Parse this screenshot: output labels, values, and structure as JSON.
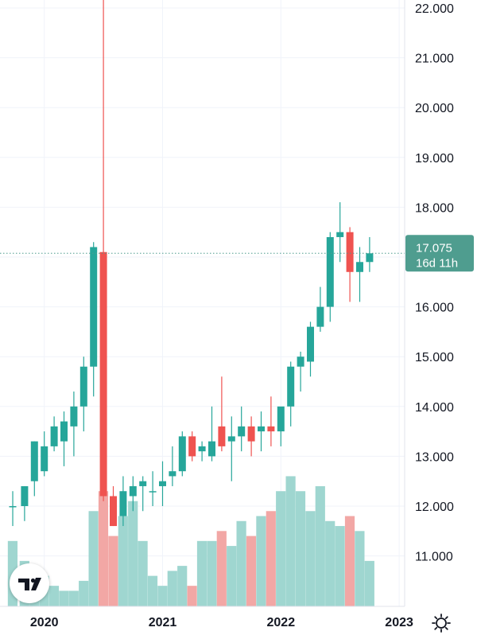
{
  "chart_data": {
    "type": "candlestick",
    "y_axis": {
      "min": 10.0,
      "max": 22.2,
      "position": "right",
      "ticks": [
        22,
        21,
        20,
        19,
        18,
        17,
        16,
        15,
        14,
        13,
        12,
        11
      ],
      "tick_labels": [
        "22.000",
        "21.000",
        "20.000",
        "19.000",
        "18.000",
        "17.000",
        "16.000",
        "15.000",
        "14.000",
        "13.000",
        "12.000",
        "11.000"
      ]
    },
    "x_axis": {
      "labels": [
        "2020",
        "2021",
        "2022",
        "2023"
      ],
      "label_positions": [
        3,
        15,
        27,
        39
      ]
    },
    "grid": true,
    "colors": {
      "up": "#26a69a",
      "down": "#ef5350",
      "up_volume": "#9fd6d0",
      "down_volume": "#f2a7a5",
      "grid": "#f0f3fa",
      "axis_text": "#131722"
    },
    "volume_scale_max": 13.5,
    "candles": [
      {
        "i": -0.2,
        "o": 12.0,
        "h": 12.3,
        "l": 11.6,
        "c": 12.0,
        "v": 11.3
      },
      {
        "i": 1,
        "o": 12.0,
        "h": 12.4,
        "l": 11.7,
        "c": 12.4,
        "v": 10.9
      },
      {
        "i": 2,
        "o": 12.5,
        "h": 13.3,
        "l": 12.2,
        "c": 13.3,
        "v": 10.7
      },
      {
        "i": 3,
        "o": 12.7,
        "h": 13.5,
        "l": 12.6,
        "c": 13.2,
        "v": 10.6
      },
      {
        "i": 4,
        "o": 13.2,
        "h": 13.8,
        "l": 13.1,
        "c": 13.6,
        "v": 10.4
      },
      {
        "i": 5,
        "o": 13.3,
        "h": 13.9,
        "l": 12.8,
        "c": 13.7,
        "v": 10.3
      },
      {
        "i": 6,
        "o": 13.6,
        "h": 14.3,
        "l": 13.0,
        "c": 14.0,
        "v": 10.3
      },
      {
        "i": 7,
        "o": 14.0,
        "h": 15.0,
        "l": 13.5,
        "c": 14.8,
        "v": 10.5
      },
      {
        "i": 8,
        "o": 14.8,
        "h": 17.3,
        "l": 14.2,
        "c": 17.2,
        "v": 11.9
      },
      {
        "i": 9,
        "o": 17.1,
        "h": 22.2,
        "l": 12.1,
        "c": 12.2,
        "v": 12.3
      },
      {
        "i": 10,
        "o": 12.2,
        "h": 12.4,
        "l": 11.6,
        "c": 11.6,
        "v": 11.4
      },
      {
        "i": 11,
        "o": 11.8,
        "h": 12.6,
        "l": 11.6,
        "c": 12.3,
        "v": 11.8
      },
      {
        "i": 12,
        "o": 12.2,
        "h": 12.6,
        "l": 11.9,
        "c": 12.4,
        "v": 12.1
      },
      {
        "i": 13,
        "o": 12.4,
        "h": 12.6,
        "l": 11.9,
        "c": 12.5,
        "v": 11.3
      },
      {
        "i": 14,
        "o": 12.3,
        "h": 12.7,
        "l": 12.0,
        "c": 12.3,
        "v": 10.6
      },
      {
        "i": 15,
        "o": 12.4,
        "h": 12.9,
        "l": 12.0,
        "c": 12.5,
        "v": 10.4
      },
      {
        "i": 16,
        "o": 12.6,
        "h": 13.2,
        "l": 12.4,
        "c": 12.7,
        "v": 10.7
      },
      {
        "i": 17,
        "o": 12.7,
        "h": 13.5,
        "l": 12.6,
        "c": 13.4,
        "v": 10.8
      },
      {
        "i": 18,
        "o": 13.4,
        "h": 13.5,
        "l": 12.9,
        "c": 13.0,
        "v": 10.4
      },
      {
        "i": 19,
        "o": 13.1,
        "h": 13.3,
        "l": 12.9,
        "c": 13.2,
        "v": 11.3
      },
      {
        "i": 20,
        "o": 13.0,
        "h": 14.0,
        "l": 12.9,
        "c": 13.3,
        "v": 11.3
      },
      {
        "i": 21,
        "o": 13.6,
        "h": 14.6,
        "l": 13.1,
        "c": 13.2,
        "v": 11.5
      },
      {
        "i": 22,
        "o": 13.3,
        "h": 13.8,
        "l": 12.5,
        "c": 13.4,
        "v": 11.2
      },
      {
        "i": 23,
        "o": 13.4,
        "h": 14.0,
        "l": 13.1,
        "c": 13.6,
        "v": 11.7
      },
      {
        "i": 24,
        "o": 13.6,
        "h": 13.8,
        "l": 13.0,
        "c": 13.3,
        "v": 11.4
      },
      {
        "i": 25,
        "o": 13.5,
        "h": 13.9,
        "l": 13.1,
        "c": 13.6,
        "v": 11.8
      },
      {
        "i": 26,
        "o": 13.6,
        "h": 14.2,
        "l": 13.2,
        "c": 13.5,
        "v": 11.9
      },
      {
        "i": 27,
        "o": 13.5,
        "h": 13.9,
        "l": 13.2,
        "c": 14.0,
        "v": 12.3
      },
      {
        "i": 28,
        "o": 14.0,
        "h": 14.9,
        "l": 13.6,
        "c": 14.8,
        "v": 12.6
      },
      {
        "i": 29,
        "o": 14.8,
        "h": 15.1,
        "l": 14.3,
        "c": 15.0,
        "v": 12.3
      },
      {
        "i": 30,
        "o": 14.9,
        "h": 15.7,
        "l": 14.6,
        "c": 15.6,
        "v": 11.9
      },
      {
        "i": 31,
        "o": 15.6,
        "h": 16.4,
        "l": 15.5,
        "c": 16.0,
        "v": 12.4
      },
      {
        "i": 32,
        "o": 16.0,
        "h": 17.5,
        "l": 15.7,
        "c": 17.4,
        "v": 11.7
      },
      {
        "i": 33,
        "o": 17.4,
        "h": 18.1,
        "l": 16.9,
        "c": 17.5,
        "v": 11.6
      },
      {
        "i": 34,
        "o": 17.5,
        "h": 17.6,
        "l": 16.1,
        "c": 16.7,
        "v": 11.8
      },
      {
        "i": 35,
        "o": 16.7,
        "h": 17.2,
        "l": 16.1,
        "c": 16.9,
        "v": 11.5
      },
      {
        "i": 36,
        "o": 16.9,
        "h": 17.4,
        "l": 16.7,
        "c": 17.075,
        "v": 10.9
      }
    ]
  },
  "last_price": {
    "price": "17.075",
    "countdown": "16d 11h",
    "value": 17.075,
    "color": "#4f9d8f"
  },
  "logo": {
    "text": "TV",
    "icon": "tradingview-logo"
  },
  "settings": {
    "icon": "gear-icon"
  }
}
